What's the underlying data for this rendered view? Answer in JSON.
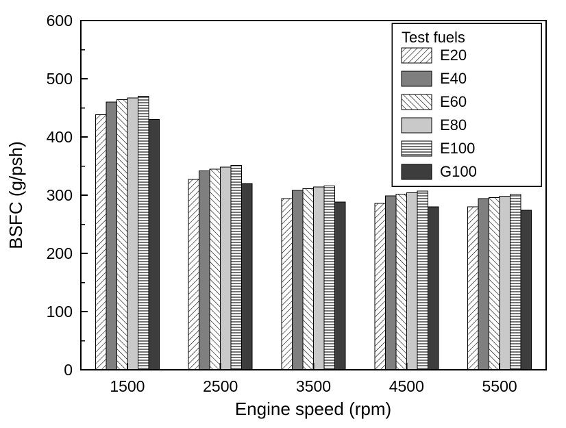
{
  "chart_data": {
    "type": "bar",
    "xlabel": "Engine speed (rpm)",
    "ylabel": "BSFC (g/psh)",
    "categories": [
      "1500",
      "2500",
      "3500",
      "4500",
      "5500"
    ],
    "ylim": [
      0,
      600
    ],
    "ytick_step": 100,
    "yminor_step": 50,
    "grid": "off",
    "legend_title": "Test fuels",
    "legend_position": "top-right",
    "series": [
      {
        "name": "E20",
        "pattern": "diag-forward",
        "values": [
          438,
          327,
          294,
          286,
          280
        ]
      },
      {
        "name": "E40",
        "pattern": "solid-gray",
        "values": [
          460,
          342,
          308,
          299,
          294
        ]
      },
      {
        "name": "E60",
        "pattern": "diag-back",
        "values": [
          464,
          345,
          311,
          302,
          296
        ]
      },
      {
        "name": "E80",
        "pattern": "solid-lightgray",
        "values": [
          467,
          348,
          314,
          304,
          298
        ]
      },
      {
        "name": "E100",
        "pattern": "horizontal",
        "values": [
          470,
          351,
          316,
          307,
          301
        ]
      },
      {
        "name": "G100",
        "pattern": "solid-dark",
        "values": [
          430,
          320,
          288,
          280,
          274
        ]
      }
    ],
    "colors": {
      "gray": "#7f7f7f",
      "lightgray": "#c9c9c9",
      "dark": "#3d3d3d",
      "axis": "#000000",
      "background": "#ffffff"
    }
  }
}
